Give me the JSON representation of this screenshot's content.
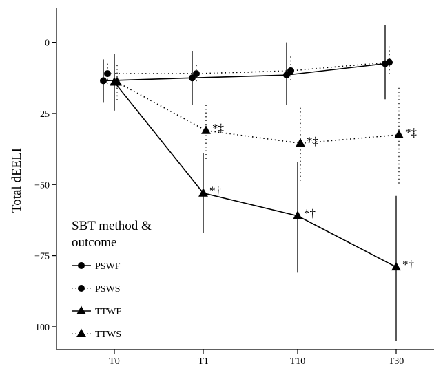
{
  "chart_data": {
    "type": "line",
    "ylabel": "Total dEELI",
    "xlabel": "",
    "categories": [
      "T0",
      "T1",
      "T10",
      "T30"
    ],
    "ylim": [
      -108,
      12
    ],
    "yticks": [
      0,
      -25,
      -50,
      -75,
      -100
    ],
    "ytick_labels": [
      "0",
      "−25",
      "−50",
      "−75",
      "−100"
    ],
    "grid": false,
    "legend": {
      "title_lines": [
        "SBT method &",
        "outcome"
      ],
      "position": "bottom-left"
    },
    "series": [
      {
        "name": "PSWF",
        "marker": "circle",
        "line": "solid",
        "values": [
          -13.5,
          -12.5,
          -11.5,
          -7.5
        ],
        "err_low": [
          -21,
          -22,
          -22,
          -20
        ],
        "err_high": [
          -6,
          -3,
          0,
          6
        ],
        "annotations": [
          "",
          "",
          "",
          ""
        ]
      },
      {
        "name": "PSWS",
        "marker": "circle",
        "line": "dotted",
        "values": [
          -11,
          -11,
          -10,
          -7
        ],
        "err_low": [
          -14.5,
          -14,
          -13.5,
          -11
        ],
        "err_high": [
          -7.5,
          -8,
          -5,
          -1.5
        ],
        "annotations": [
          "",
          "",
          "",
          ""
        ]
      },
      {
        "name": "TTWF",
        "marker": "triangle",
        "line": "solid",
        "values": [
          -14,
          -53,
          -61,
          -79
        ],
        "err_low": [
          -24,
          -67,
          -81,
          -105
        ],
        "err_high": [
          -4,
          -39,
          -42,
          -54
        ],
        "annotations": [
          "",
          "*†",
          "*†",
          "*†"
        ]
      },
      {
        "name": "TTWS",
        "marker": "triangle",
        "line": "dotted",
        "values": [
          -14,
          -31,
          -35.5,
          -32.5
        ],
        "err_low": [
          -21,
          -41,
          -49,
          -50
        ],
        "err_high": [
          -8,
          -22,
          -23,
          -16
        ],
        "annotations": [
          "",
          "*‡",
          "*‡",
          "*‡"
        ]
      }
    ]
  }
}
